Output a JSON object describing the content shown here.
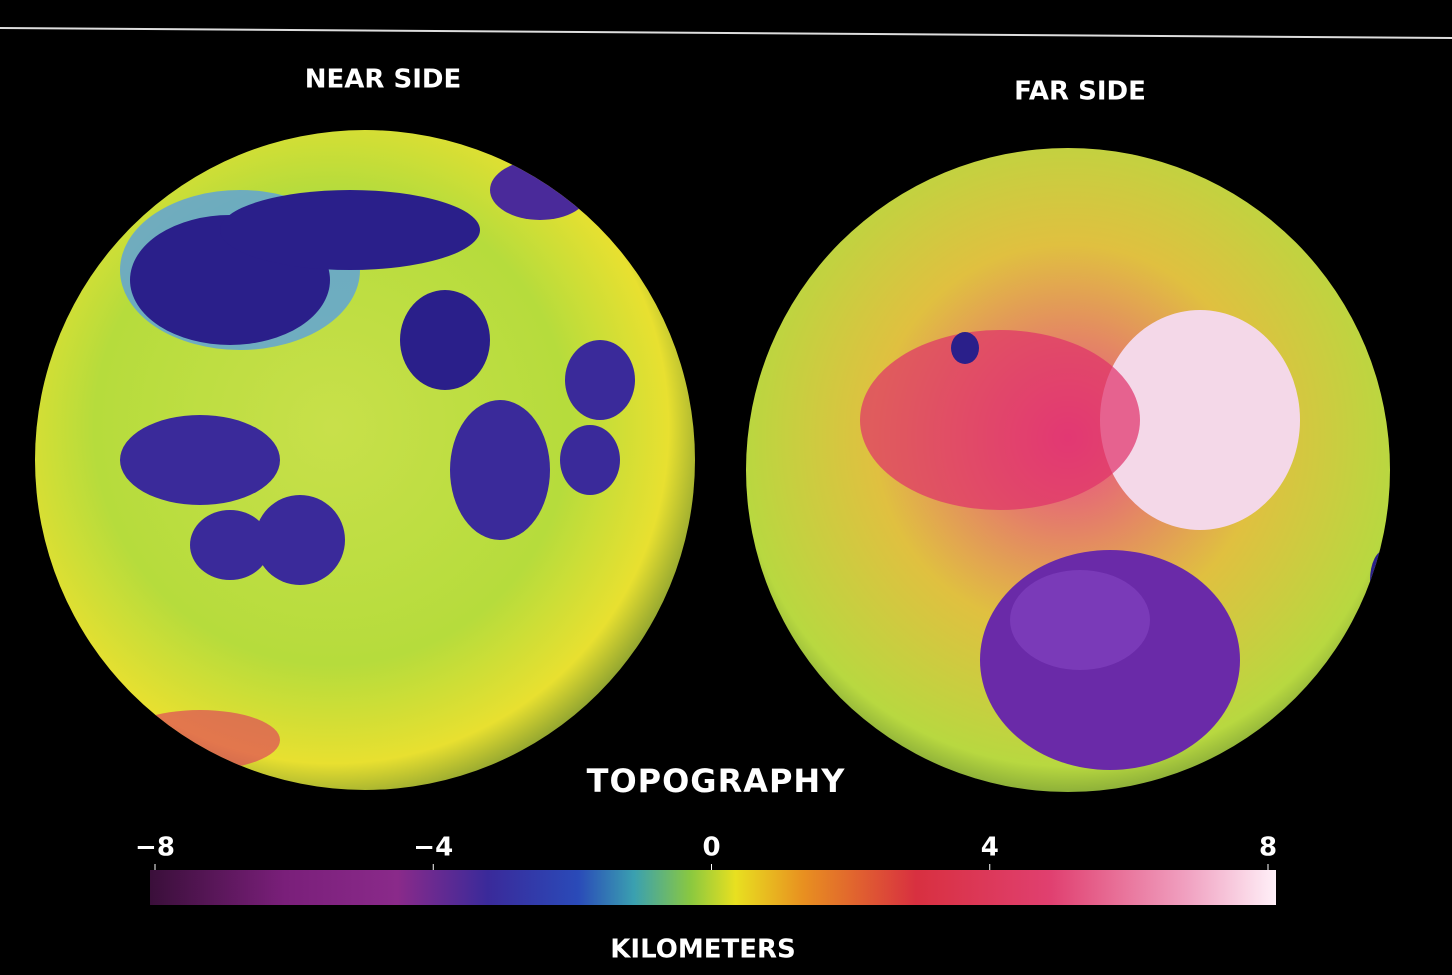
{
  "panels": [
    {
      "title": "NEAR SIDE"
    },
    {
      "title": "FAR SIDE"
    }
  ],
  "legend": {
    "title": "TOPOGRAPHY",
    "unit": "KILOMETERS",
    "range": [
      -8,
      8
    ],
    "ticks": [
      {
        "value": -8,
        "label": "−8"
      },
      {
        "value": -4,
        "label": "−4"
      },
      0,
      4,
      8
    ]
  }
}
